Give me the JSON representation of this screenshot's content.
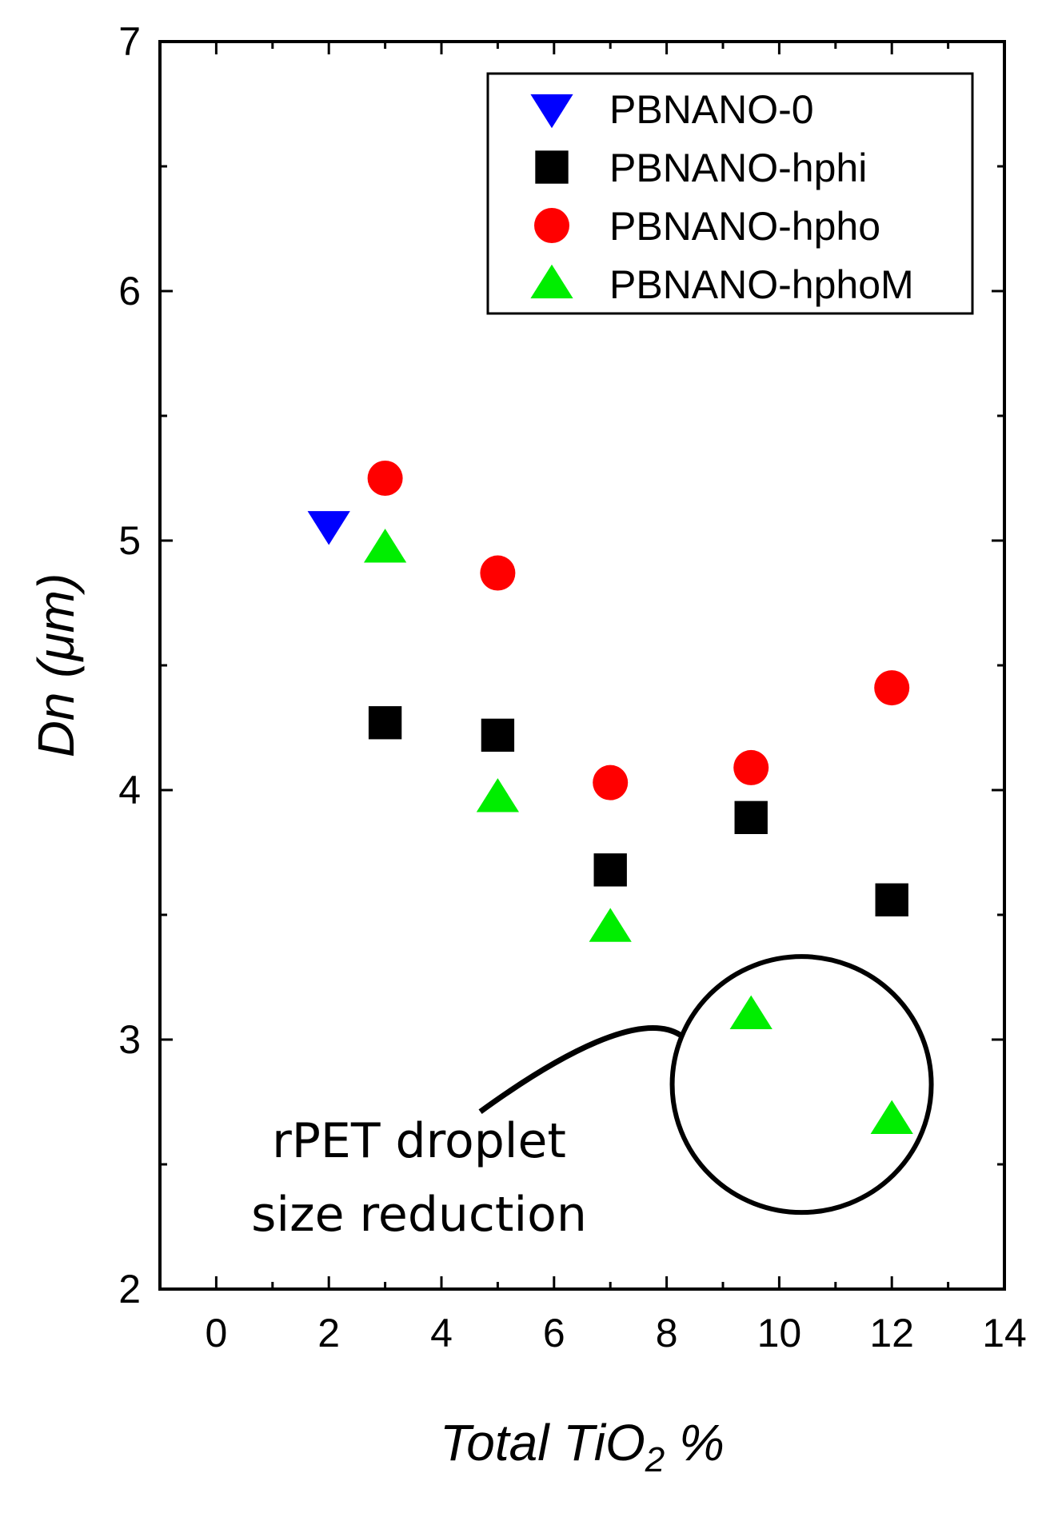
{
  "chart_data": {
    "type": "scatter",
    "xlabel_main": "Total TiO",
    "xlabel_sub": "2",
    "xlabel_suffix": " %",
    "ylabel": "Dn (μm)",
    "xlim": [
      -1,
      14
    ],
    "ylim": [
      2,
      7
    ],
    "xticks": [
      0,
      2,
      4,
      6,
      8,
      10,
      12,
      14
    ],
    "yticks": [
      2,
      3,
      4,
      5,
      6,
      7
    ],
    "legend_position": "top-right",
    "series": [
      {
        "name": "PBNANO-0",
        "marker": "triangle-down",
        "color": "#0000ff",
        "points": [
          {
            "x": 2,
            "y": 5.06
          }
        ]
      },
      {
        "name": "PBNANO-hphi",
        "marker": "square",
        "color": "#000000",
        "points": [
          {
            "x": 3,
            "y": 4.27
          },
          {
            "x": 5,
            "y": 4.22
          },
          {
            "x": 7,
            "y": 3.68
          },
          {
            "x": 9.5,
            "y": 3.89
          },
          {
            "x": 12,
            "y": 3.56
          }
        ]
      },
      {
        "name": "PBNANO-hpho",
        "marker": "circle",
        "color": "#ff0000",
        "points": [
          {
            "x": 3,
            "y": 5.25
          },
          {
            "x": 5,
            "y": 4.87
          },
          {
            "x": 7,
            "y": 4.03
          },
          {
            "x": 9.5,
            "y": 4.09
          },
          {
            "x": 12,
            "y": 4.41
          }
        ]
      },
      {
        "name": "PBNANO-hphoM",
        "marker": "triangle-up",
        "color": "#00ee00",
        "points": [
          {
            "x": 3,
            "y": 4.97
          },
          {
            "x": 5,
            "y": 3.97
          },
          {
            "x": 7,
            "y": 3.45
          },
          {
            "x": 9.5,
            "y": 3.1
          },
          {
            "x": 12,
            "y": 2.68
          }
        ]
      }
    ],
    "annotation": {
      "lines": [
        "rPET droplet",
        "size reduction"
      ],
      "circle_center": {
        "x": 10.4,
        "y": 2.82
      }
    }
  }
}
